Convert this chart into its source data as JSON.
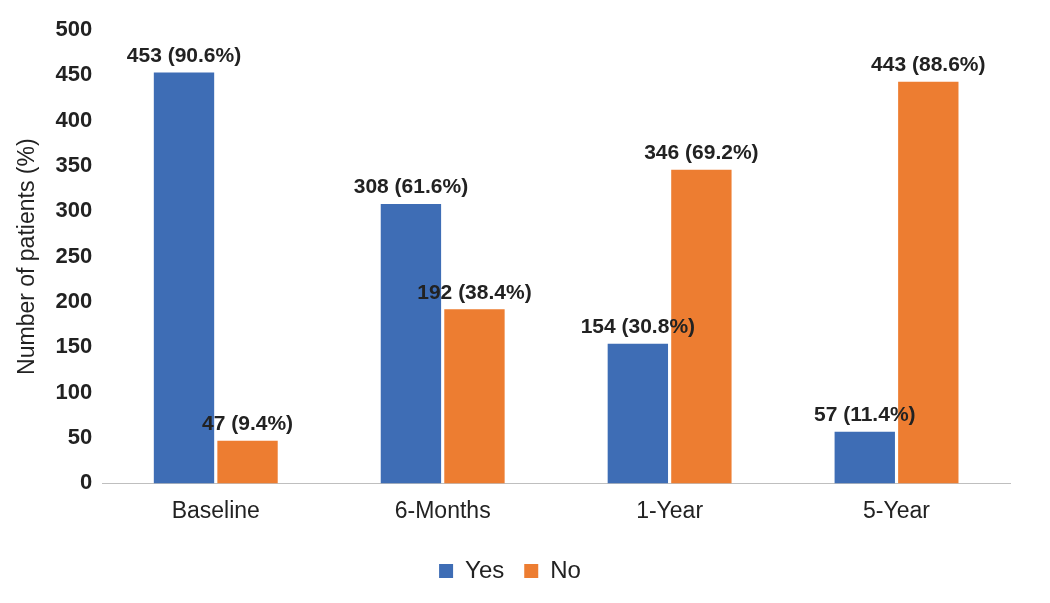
{
  "chart_data": {
    "type": "bar",
    "ylabel": "Number of patients (%)",
    "categories": [
      "Baseline",
      "6-Months",
      "1-Year",
      "5-Year"
    ],
    "series": [
      {
        "name": "Yes",
        "color": "#3e6db5",
        "values": [
          453,
          308,
          154,
          57
        ],
        "value_labels": [
          "453 (90.6%)",
          "308 (61.6%)",
          "154 (30.8%)",
          "57 (11.4%)"
        ]
      },
      {
        "name": "No",
        "color": "#ed7d31",
        "values": [
          47,
          192,
          346,
          443
        ],
        "value_labels": [
          "47 (9.4%)",
          "192 (38.4%)",
          "346 (69.2%)",
          "443 (88.6%)"
        ]
      }
    ],
    "ylim": [
      0,
      500
    ],
    "yticks": [
      0,
      50,
      100,
      150,
      200,
      250,
      300,
      350,
      400,
      450,
      500
    ],
    "grid": false,
    "legend": "bottom"
  }
}
